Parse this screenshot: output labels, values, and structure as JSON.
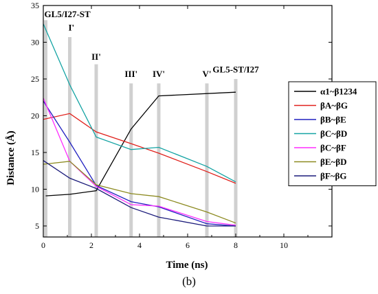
{
  "caption": "(b)",
  "chart_data": {
    "type": "line",
    "xlabel": "Time (ns)",
    "ylabel": "Distance (Å)",
    "xlim": [
      0,
      12
    ],
    "ylim": [
      3.5,
      35
    ],
    "xticks": [
      "0",
      "2",
      "4",
      "6",
      "8",
      "10"
    ],
    "yticks": [
      "5",
      "10",
      "15",
      "20",
      "25",
      "30",
      "35"
    ],
    "grid": false,
    "legend_position": "right",
    "annotations": [
      {
        "label": "GL5/I27-ST",
        "x": 0.1,
        "y": 33.4,
        "anchor": "start",
        "line_top": 33.0
      },
      {
        "label": "I'",
        "x": 1.1,
        "y": 31.6,
        "anchor": "start",
        "line_top": 30.7
      },
      {
        "label": "II'",
        "x": 2.2,
        "y": 27.6,
        "anchor": "middle",
        "line_top": 27.0
      },
      {
        "label": "III'",
        "x": 3.65,
        "y": 25.3,
        "anchor": "middle",
        "line_top": 24.4
      },
      {
        "label": "IV'",
        "x": 4.8,
        "y": 25.3,
        "anchor": "middle",
        "line_top": 24.4
      },
      {
        "label": "V'",
        "x": 6.8,
        "y": 25.3,
        "anchor": "middle",
        "line_top": 24.4
      },
      {
        "label": "GL5-ST/I27",
        "x": 8.0,
        "y": 25.9,
        "anchor": "middle",
        "line_top": 25.0
      }
    ],
    "series": [
      {
        "name": "α1~β1234",
        "color": "#000000",
        "points": [
          [
            0.1,
            9.1
          ],
          [
            1.1,
            9.3
          ],
          [
            2.2,
            9.8
          ],
          [
            3.65,
            18.2
          ],
          [
            4.8,
            22.7
          ],
          [
            8.0,
            23.2
          ]
        ]
      },
      {
        "name": "βA~βG",
        "color": "#e0201b",
        "points": [
          [
            0.0,
            19.5
          ],
          [
            1.1,
            20.3
          ],
          [
            2.2,
            17.8
          ],
          [
            3.65,
            16.2
          ],
          [
            4.8,
            14.9
          ],
          [
            6.8,
            12.4
          ],
          [
            8.0,
            10.8
          ]
        ]
      },
      {
        "name": "βB~βE",
        "color": "#2020c0",
        "points": [
          [
            0.0,
            22.0
          ],
          [
            1.1,
            16.4
          ],
          [
            2.2,
            10.5
          ],
          [
            3.65,
            8.3
          ],
          [
            4.8,
            7.6
          ],
          [
            6.8,
            5.3
          ],
          [
            8.0,
            5.0
          ]
        ]
      },
      {
        "name": "βC~βD",
        "color": "#13a3a3",
        "points": [
          [
            0.0,
            32.5
          ],
          [
            1.1,
            24.2
          ],
          [
            2.2,
            17.1
          ],
          [
            3.65,
            15.4
          ],
          [
            4.8,
            15.7
          ],
          [
            6.8,
            13.1
          ],
          [
            8.0,
            11.0
          ]
        ]
      },
      {
        "name": "βC~βF",
        "color": "#ff2bff",
        "points": [
          [
            0.0,
            22.4
          ],
          [
            1.1,
            13.8
          ],
          [
            2.2,
            10.4
          ],
          [
            3.65,
            7.9
          ],
          [
            4.8,
            7.7
          ],
          [
            6.8,
            5.6
          ],
          [
            8.0,
            5.1
          ]
        ]
      },
      {
        "name": "βE~βD",
        "color": "#8c8a20",
        "points": [
          [
            0.0,
            13.4
          ],
          [
            1.1,
            13.8
          ],
          [
            2.2,
            10.6
          ],
          [
            3.65,
            9.4
          ],
          [
            4.8,
            9.0
          ],
          [
            6.8,
            6.9
          ],
          [
            8.0,
            5.4
          ]
        ]
      },
      {
        "name": "βF~βG",
        "color": "#1a1a7a",
        "points": [
          [
            0.0,
            13.9
          ],
          [
            1.1,
            11.5
          ],
          [
            2.2,
            10.1
          ],
          [
            3.65,
            7.5
          ],
          [
            4.8,
            6.2
          ],
          [
            6.8,
            5.0
          ],
          [
            8.0,
            5.0
          ]
        ]
      }
    ]
  }
}
